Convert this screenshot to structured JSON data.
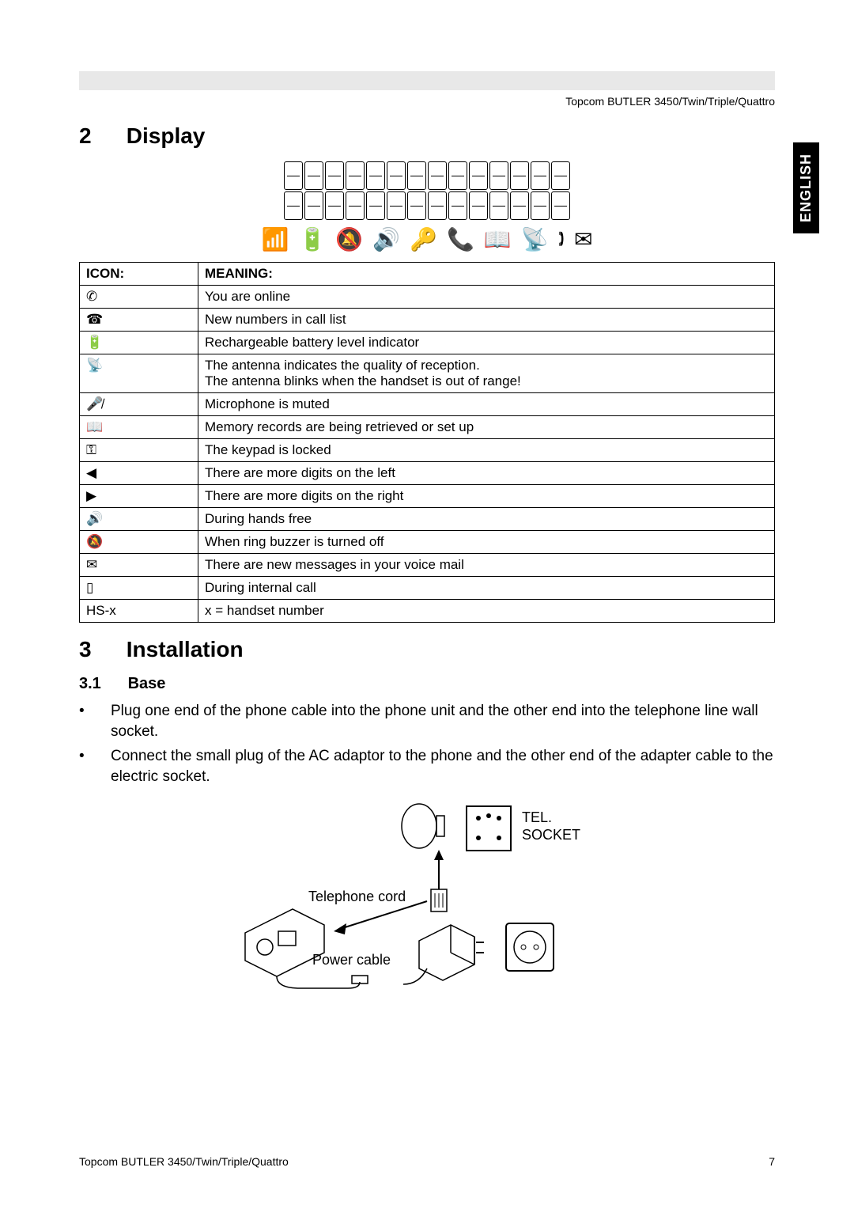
{
  "header": {
    "product_line": "Topcom BUTLER 3450/Twin/Triple/Quattro"
  },
  "side_tab": "ENGLISH",
  "sections": {
    "display": {
      "number": "2",
      "title": "Display"
    },
    "installation": {
      "number": "3",
      "title": "Installation"
    },
    "base": {
      "number": "3.1",
      "title": "Base"
    }
  },
  "lcd_figure": {
    "segment_rows": 2,
    "segments_per_row": 14,
    "icon_row_glyphs": [
      "📶",
      "🔋",
      "🔕",
      "🔊",
      "🔑",
      "📞",
      "📖",
      "📡",
      "🕽",
      "✉"
    ]
  },
  "icon_table": {
    "headers": {
      "icon": "ICON:",
      "meaning": "MEANING:"
    },
    "rows": [
      {
        "icon_glyph": "✆",
        "icon_name": "phone-hook-icon",
        "meaning": "You are online"
      },
      {
        "icon_glyph": "☎",
        "icon_name": "call-list-icon",
        "meaning": "New numbers in call list"
      },
      {
        "icon_glyph": "🔋",
        "icon_name": "battery-icon",
        "meaning": "Rechargeable battery level indicator"
      },
      {
        "icon_glyph": "📡",
        "icon_name": "antenna-icon",
        "meaning": "The antenna indicates the quality of reception.\nThe antenna blinks when the handset is out of range!"
      },
      {
        "icon_glyph": "🎤̸",
        "icon_name": "mic-mute-icon",
        "meaning": "Microphone is muted"
      },
      {
        "icon_glyph": "📖",
        "icon_name": "memory-book-icon",
        "meaning": "Memory records are being retrieved or set up"
      },
      {
        "icon_glyph": "⚿",
        "icon_name": "key-lock-icon",
        "meaning": "The keypad is locked"
      },
      {
        "icon_glyph": "◀",
        "icon_name": "left-arrow-icon",
        "meaning": "There are more digits on the left"
      },
      {
        "icon_glyph": "▶",
        "icon_name": "right-arrow-icon",
        "meaning": "There are more digits on the right"
      },
      {
        "icon_glyph": "🔊",
        "icon_name": "handsfree-icon",
        "meaning": "During hands free"
      },
      {
        "icon_glyph": "🔕",
        "icon_name": "bell-off-icon",
        "meaning": "When ring buzzer is turned off"
      },
      {
        "icon_glyph": "✉",
        "icon_name": "envelope-icon",
        "meaning": "There are new messages in your voice mail"
      },
      {
        "icon_glyph": "▯",
        "icon_name": "internal-call-icon",
        "meaning": "During internal call"
      },
      {
        "icon_glyph": "HS-x",
        "icon_name": "hs-x-label",
        "meaning": "x = handset number"
      }
    ]
  },
  "base_bullets": [
    "Plug one end of the phone cable into the phone unit and the other end into the telephone line wall socket.",
    "Connect the small plug of the AC adaptor to the phone and the other end of the adapter cable to the electric socket."
  ],
  "install_labels": {
    "tel_socket": "TEL.\nSOCKET",
    "telephone_cord": "Telephone cord",
    "power_cable": "Power cable"
  },
  "footer": {
    "left": "Topcom BUTLER 3450/Twin/Triple/Quattro",
    "page": "7"
  },
  "colors": {
    "header_bar": "#e8e8e8",
    "text": "#000000",
    "tab_bg": "#000000",
    "tab_fg": "#ffffff",
    "border": "#000000",
    "background": "#ffffff"
  }
}
